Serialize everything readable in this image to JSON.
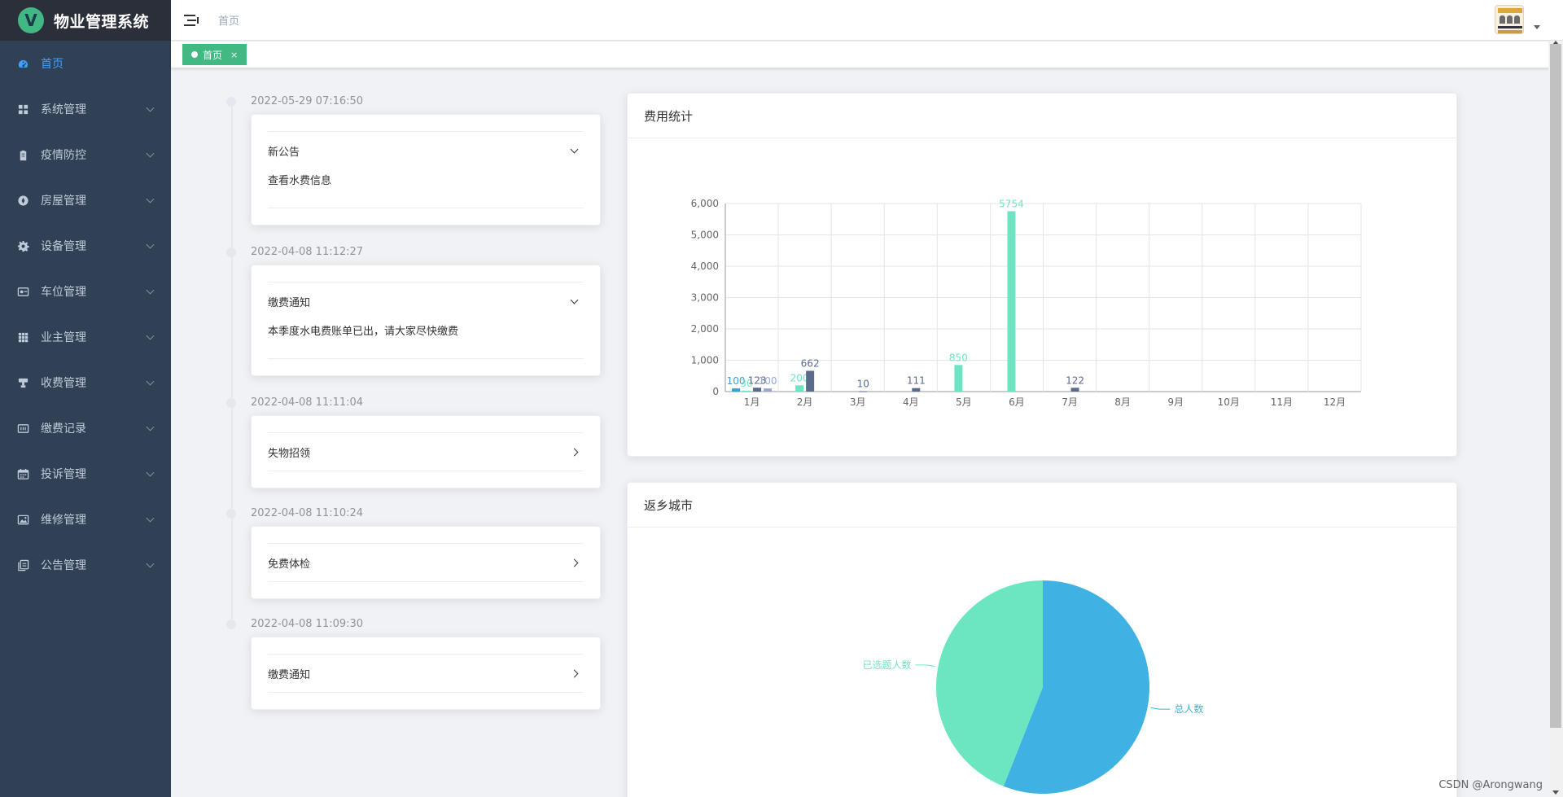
{
  "app": {
    "title": "物业管理系统"
  },
  "sidebar": {
    "items": [
      {
        "label": "首页",
        "icon": "dashboard-icon",
        "active": true
      },
      {
        "label": "系统管理",
        "icon": "grid-icon"
      },
      {
        "label": "疫情防控",
        "icon": "clipboard-icon"
      },
      {
        "label": "房屋管理",
        "icon": "compass-icon"
      },
      {
        "label": "设备管理",
        "icon": "gear-icon"
      },
      {
        "label": "车位管理",
        "icon": "parking-icon"
      },
      {
        "label": "业主管理",
        "icon": "table-icon"
      },
      {
        "label": "收费管理",
        "icon": "stamp-icon"
      },
      {
        "label": "缴费记录",
        "icon": "record-icon"
      },
      {
        "label": "投诉管理",
        "icon": "calendar-icon"
      },
      {
        "label": "维修管理",
        "icon": "picture-icon"
      },
      {
        "label": "公告管理",
        "icon": "documents-icon"
      }
    ]
  },
  "header": {
    "breadcrumb": "首页"
  },
  "tags": [
    {
      "label": "首页",
      "close": "×"
    }
  ],
  "timeline": [
    {
      "time": "2022-05-29 07:16:50",
      "title": "新公告",
      "content": "查看水费信息",
      "expanded": true
    },
    {
      "time": "2022-04-08 11:12:27",
      "title": "缴费通知",
      "content": "本季度水电费账单已出，请大家尽快缴费",
      "expanded": true
    },
    {
      "time": "2022-04-08 11:11:04",
      "title": "失物招领",
      "expanded": false
    },
    {
      "time": "2022-04-08 11:10:24",
      "title": "免费体检",
      "expanded": false
    },
    {
      "time": "2022-04-08 11:09:30",
      "title": "缴费通知",
      "expanded": false
    }
  ],
  "chart_data": [
    {
      "type": "bar",
      "title": "费用统计",
      "categories": [
        "1月",
        "2月",
        "3月",
        "4月",
        "5月",
        "6月",
        "7月",
        "8月",
        "9月",
        "10月",
        "11月",
        "12月"
      ],
      "ylim": [
        0,
        6000
      ],
      "yticks": [
        "0",
        "1,000",
        "2,000",
        "3,000",
        "4,000",
        "5,000",
        "6,000"
      ],
      "grid": true,
      "series": [
        {
          "color": "#3aa0d8",
          "values": [
            100,
            0,
            0,
            0,
            0,
            0,
            0,
            0,
            0,
            0,
            0,
            0
          ],
          "labels": [
            "100",
            "",
            "",
            "",
            "",
            "",
            "",
            "",
            "",
            "",
            "",
            ""
          ]
        },
        {
          "color": "#6ee4c4",
          "values": [
            30,
            200,
            0,
            0,
            850,
            5754,
            0,
            0,
            0,
            0,
            0,
            0
          ],
          "labels": [
            "30",
            "200",
            "",
            "",
            "850",
            "5754",
            "",
            "",
            "",
            "",
            "",
            ""
          ]
        },
        {
          "color": "#5b6b8c",
          "values": [
            123,
            662,
            10,
            111,
            0,
            0,
            122,
            0,
            0,
            0,
            0,
            0
          ],
          "labels": [
            "123",
            "662",
            "10",
            "111",
            "",
            "",
            "122",
            "",
            "",
            "",
            "",
            ""
          ]
        },
        {
          "color": "#9aa6d8",
          "values": [
            100,
            0,
            0,
            0,
            0,
            0,
            0,
            0,
            0,
            0,
            0,
            0
          ],
          "labels": [
            "100",
            "",
            "",
            "",
            "",
            "",
            "",
            "",
            "",
            "",
            "",
            ""
          ]
        }
      ]
    },
    {
      "type": "pie",
      "title": "返乡城市",
      "slices": [
        {
          "name": "总人数",
          "value": 56,
          "color": "#3fb1e3"
        },
        {
          "name": "已选题人数",
          "value": 44,
          "color": "#6be6c1"
        }
      ]
    }
  ],
  "watermark": "CSDN @Arongwang"
}
